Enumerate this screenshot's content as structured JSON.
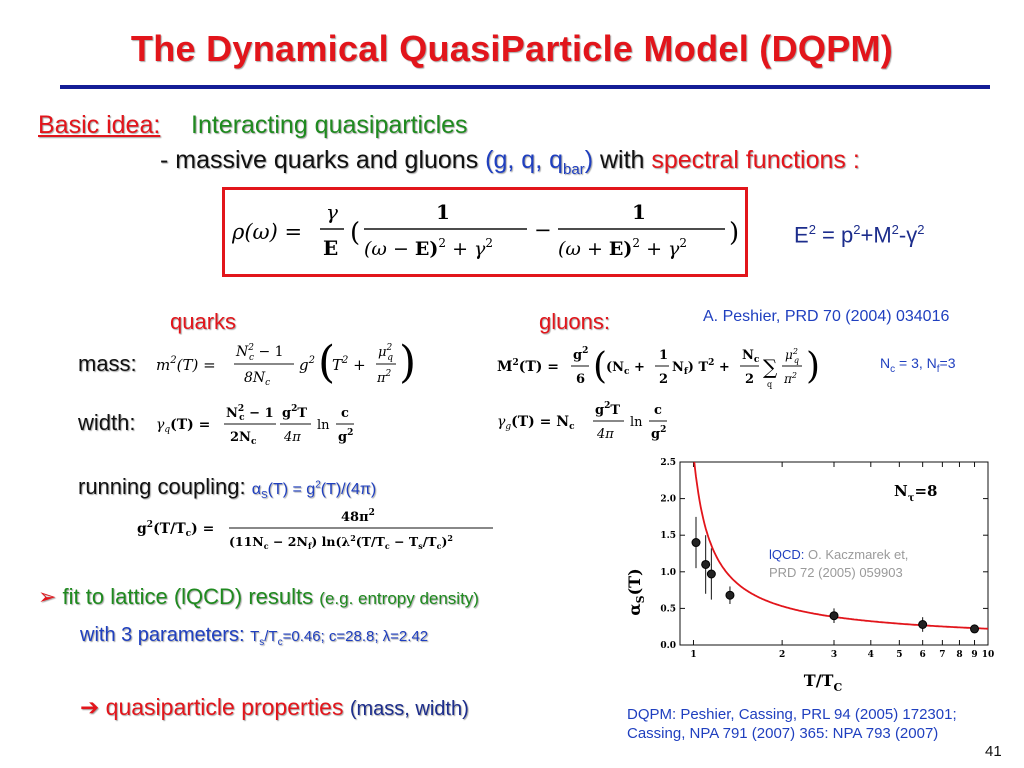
{
  "title": "The Dynamical QuasiParticle Model (DQPM)",
  "basic_idea": {
    "label": "Basic idea:",
    "text": "Interacting quasiparticles",
    "bullet_prefix": "-  massive quarks and gluons ",
    "bullet_species": "(g, q, q",
    "bullet_species_sub": "bar",
    "bullet_species_close": ")",
    "bullet_with": " with ",
    "bullet_spectral": "spectral functions :"
  },
  "energy_relation": {
    "lhs": "E",
    "p": "p",
    "M": "M",
    "gamma": "γ",
    "exp": "2",
    "eq": " = ",
    "plus": "+",
    "minus": "-"
  },
  "labels": {
    "quarks": "quarks",
    "gluons": "gluons:",
    "mass": "mass:",
    "width": "width:",
    "running_coupling": "running coupling:",
    "coupling_formula": "α",
    "coupling_sub": "S",
    "coupling_rest": "(T) = g",
    "coupling_sup": "2",
    "coupling_end": "(T)/(4π)"
  },
  "references": {
    "peshier": "A. Peshier, PRD 70 (2004) 034016",
    "nc_label": "N",
    "nc_sub": "c",
    "nc_mid": " = 3, N",
    "nf_sub": "f",
    "nf_val": "=3",
    "dqpm_line1": "DQPM: Peshier, Cassing, PRL 94 (2005) 172301;",
    "dqpm_line2": "Cassing,  NPA 791 (2007) 365: NPA 793 (2007)"
  },
  "fit": {
    "arrow": "➢",
    "text": " fit to lattice (lQCD) results ",
    "example": "(e.g. entropy density)",
    "params_label": "with 3 parameters: ",
    "ts_label": "T",
    "ts_sub": "s",
    "slash": "/T",
    "tc_sub": "c",
    "ts_val": "=0.46;  c=28.8;  λ=2.42"
  },
  "result": {
    "arrow": "➔",
    "text": " quasiparticle properties ",
    "note": "(mass, width)"
  },
  "page_number": "41",
  "colors": {
    "title": "#e2151b",
    "rule": "#141d96",
    "green": "#1f8a1f",
    "blue": "#1f3fbf",
    "fit_curve": "#e2151b"
  },
  "chart_data": {
    "type": "scatter",
    "title": "",
    "xlabel": "T/T",
    "xlabel_sub": "C",
    "ylabel": "α",
    "ylabel_sub": "S",
    "ylabel_end": "(T)",
    "x_scale": "log",
    "xlim": [
      0.9,
      10
    ],
    "ylim": [
      0,
      2.5
    ],
    "x_ticks": [
      1,
      2,
      3,
      4,
      5,
      6,
      7,
      8,
      9,
      10
    ],
    "y_ticks": [
      "0.0",
      "0.5",
      "1.0",
      "1.5",
      "2.0",
      "2.5"
    ],
    "annotation_ntau": "N",
    "annotation_ntau_sub": "τ",
    "annotation_ntau_val": "=8",
    "annotation_lqcd_label": "lQCD:",
    "annotation_lqcd_ref1": " O. Kaczmarek et,",
    "annotation_lqcd_ref2": "PRD 72 (2005) 059903",
    "series": [
      {
        "kind": "points",
        "points": [
          {
            "x": 1.02,
            "y": 1.4,
            "err": 0.35
          },
          {
            "x": 1.1,
            "y": 1.1,
            "err": 0.4
          },
          {
            "x": 1.15,
            "y": 0.97,
            "err": 0.35
          },
          {
            "x": 1.33,
            "y": 0.68,
            "err": 0.12
          },
          {
            "x": 3.0,
            "y": 0.4,
            "err": 0.1
          },
          {
            "x": 6.0,
            "y": 0.28,
            "err": 0.1
          },
          {
            "x": 9.0,
            "y": 0.22,
            "err": 0.04
          }
        ]
      },
      {
        "kind": "curve",
        "color": "#e2151b",
        "ts_over_tc": 0.46,
        "lambda": 2.42,
        "c": 28.8,
        "nc": 3,
        "nf": 3
      }
    ]
  }
}
